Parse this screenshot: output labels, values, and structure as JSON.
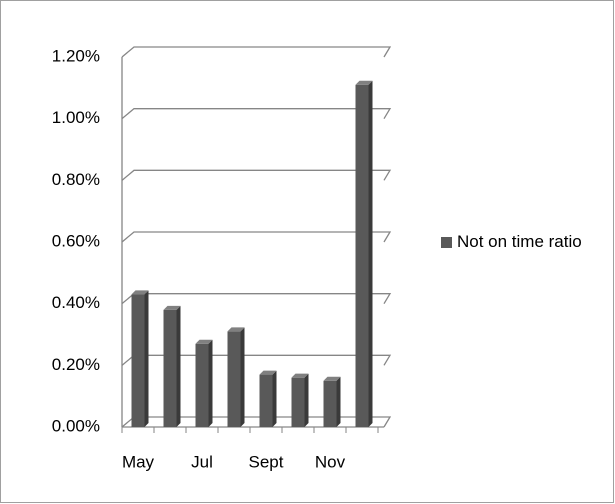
{
  "chart_data": {
    "type": "bar",
    "categories": [
      "May",
      null,
      "Jul",
      null,
      "Sept",
      null,
      "Nov",
      null
    ],
    "series": [
      {
        "name": "Not on time ratio",
        "color": "#595959",
        "values": [
          0.43,
          0.38,
          0.27,
          0.31,
          0.17,
          0.16,
          0.15,
          1.11
        ]
      }
    ],
    "ylim": [
      0,
      1.2
    ],
    "yticks": [
      {
        "value": 0,
        "label": "0.00%"
      },
      {
        "value": 0.2,
        "label": "0.20%"
      },
      {
        "value": 0.4,
        "label": "0.40%"
      },
      {
        "value": 0.6,
        "label": "0.60%"
      },
      {
        "value": 0.8,
        "label": "0.80%"
      },
      {
        "value": 1.0,
        "label": "1.00%"
      },
      {
        "value": 1.2,
        "label": "1.20%"
      }
    ],
    "grid": true,
    "legend": "right"
  }
}
